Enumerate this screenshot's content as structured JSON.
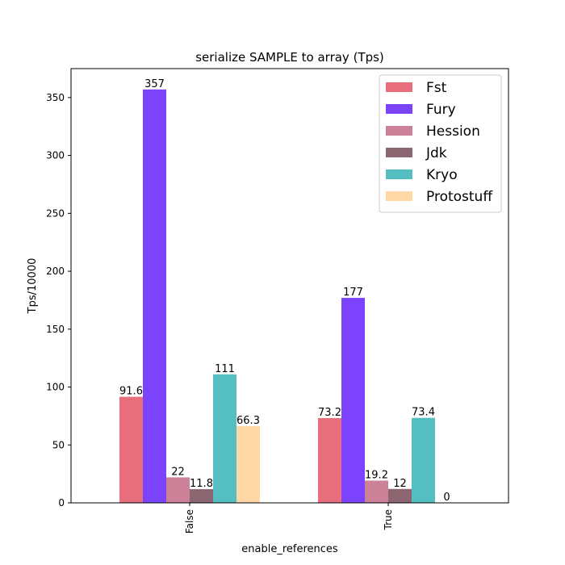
{
  "chart_data": {
    "type": "bar",
    "title": "serialize SAMPLE to array (Tps)",
    "xlabel": "enable_references",
    "ylabel": "Tps/10000",
    "categories": [
      "False",
      "True"
    ],
    "ylim": [
      0,
      375
    ],
    "yticks": [
      0,
      50,
      100,
      150,
      200,
      250,
      300,
      350
    ],
    "legend_position": "top-right",
    "series": [
      {
        "name": "Fst",
        "color": "#e86e7e",
        "values": [
          91.6,
          73.2
        ],
        "labels": [
          "91.6",
          "73.2"
        ]
      },
      {
        "name": "Fury",
        "color": "#7b43fb",
        "values": [
          357,
          177
        ],
        "labels": [
          "357",
          "177"
        ]
      },
      {
        "name": "Hession",
        "color": "#cc8198",
        "values": [
          22,
          19.2
        ],
        "labels": [
          "22",
          "19.2"
        ]
      },
      {
        "name": "Jdk",
        "color": "#8b6671",
        "values": [
          11.8,
          12
        ],
        "labels": [
          "11.8",
          "12"
        ]
      },
      {
        "name": "Kryo",
        "color": "#55bec1",
        "values": [
          111,
          73.4
        ],
        "labels": [
          "111",
          "73.4"
        ]
      },
      {
        "name": "Protostuff",
        "color": "#ffd6a6",
        "values": [
          66.3,
          0
        ],
        "labels": [
          "66.3",
          "0"
        ]
      }
    ]
  }
}
